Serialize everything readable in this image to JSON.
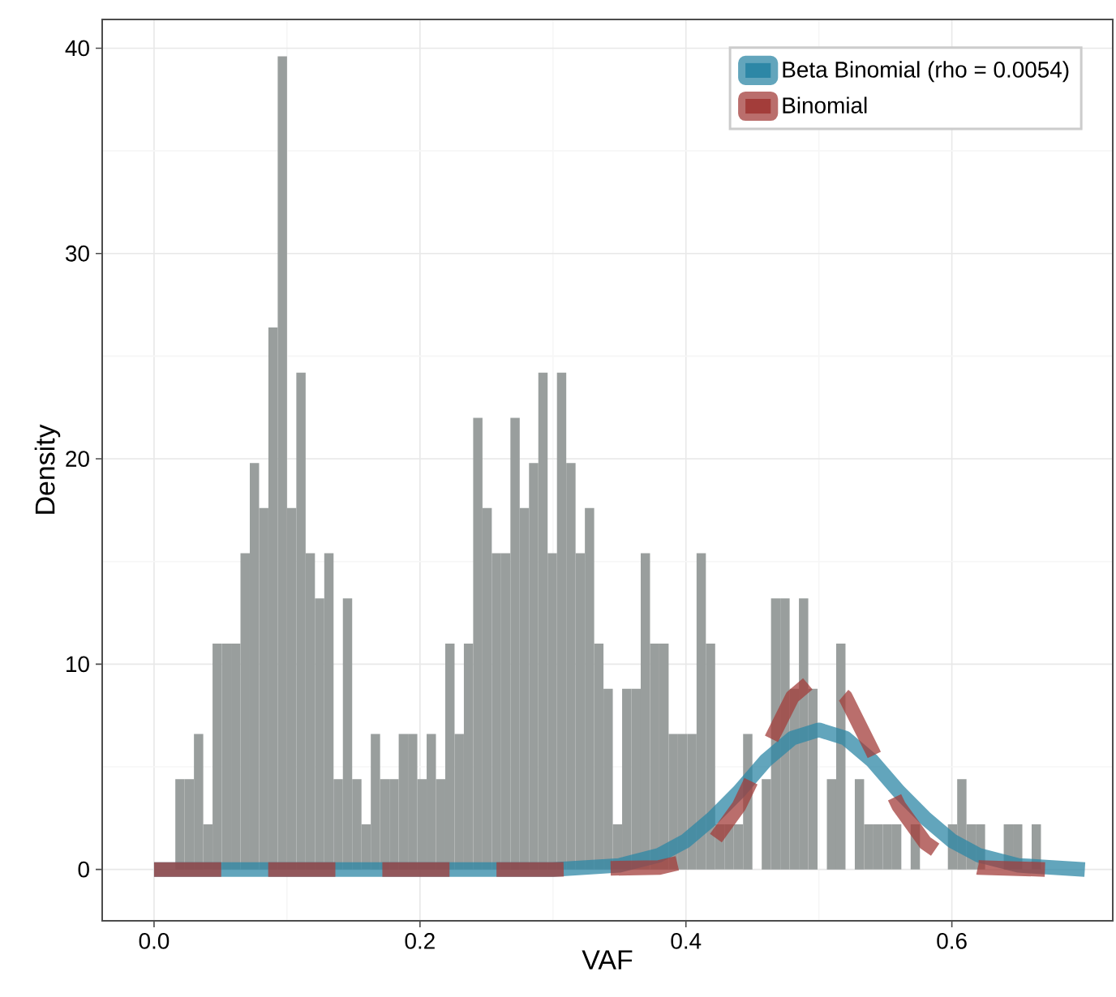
{
  "chart_data": {
    "type": "histogram",
    "xlabel": "VAF",
    "ylabel": "Density",
    "bins": [
      0.016,
      0.023,
      0.03,
      0.037,
      0.044,
      0.051,
      0.058,
      0.065,
      0.072,
      0.079,
      0.086,
      0.093,
      0.1,
      0.107,
      0.114,
      0.121,
      0.128,
      0.135,
      0.142,
      0.149,
      0.156,
      0.163,
      0.17,
      0.177,
      0.184,
      0.191,
      0.198,
      0.205,
      0.212,
      0.219,
      0.226,
      0.233,
      0.24,
      0.247,
      0.254,
      0.261,
      0.268,
      0.275,
      0.282,
      0.289,
      0.296,
      0.303,
      0.31,
      0.317,
      0.324,
      0.331,
      0.338,
      0.345,
      0.352,
      0.359,
      0.366,
      0.373,
      0.38,
      0.387,
      0.394,
      0.401,
      0.408,
      0.415,
      0.422,
      0.429,
      0.436,
      0.443,
      0.45,
      0.457,
      0.464,
      0.471,
      0.478,
      0.485,
      0.492,
      0.499,
      0.506,
      0.513,
      0.52,
      0.527,
      0.534,
      0.541,
      0.548,
      0.555,
      0.562,
      0.569,
      0.576,
      0.583,
      0.59,
      0.597,
      0.604,
      0.611,
      0.618,
      0.625,
      0.632,
      0.639,
      0.646,
      0.653,
      0.66,
      0.667
    ],
    "values": [
      4.4,
      4.4,
      6.6,
      2.2,
      11,
      11,
      11,
      15.4,
      19.8,
      17.6,
      26.4,
      39.6,
      17.6,
      24.2,
      15.4,
      13.2,
      15.4,
      4.4,
      13.2,
      4.4,
      2.2,
      6.6,
      4.4,
      4.4,
      6.6,
      6.6,
      4.4,
      6.6,
      4.4,
      11,
      6.6,
      11,
      22,
      17.6,
      15.4,
      15.4,
      22,
      17.6,
      19.8,
      24.2,
      15.4,
      24.2,
      19.8,
      15.4,
      17.6,
      11,
      8.8,
      2.2,
      8.8,
      8.8,
      15.4,
      11,
      11,
      6.6,
      6.6,
      6.6,
      15.4,
      11,
      2.2,
      2.2,
      2.2,
      6.6,
      0,
      4.4,
      13.2,
      13.2,
      8.8,
      13.2,
      8.8,
      0,
      4.4,
      11,
      0,
      4.4,
      2.2,
      2.2,
      2.2,
      2.2,
      0,
      2.2,
      0,
      0,
      0,
      2.2,
      4.4,
      2.2,
      2.2,
      0,
      0,
      2.2,
      2.2,
      0,
      2.2
    ],
    "color": "#999e9d",
    "series": [
      {
        "type": "line",
        "name": "Beta Binomial (rho = 0.0054)",
        "color": "#2e87a6",
        "line_style": "solid",
        "x": [
          0,
          0.3,
          0.35,
          0.38,
          0.4,
          0.42,
          0.44,
          0.46,
          0.48,
          0.5,
          0.52,
          0.54,
          0.56,
          0.58,
          0.6,
          0.62,
          0.65,
          0.7
        ],
        "values": [
          0,
          0,
          0.2,
          0.7,
          1.4,
          2.5,
          3.8,
          5.3,
          6.4,
          6.8,
          6.4,
          5.3,
          3.8,
          2.5,
          1.4,
          0.7,
          0.2,
          0
        ]
      },
      {
        "type": "line",
        "name": "Binomial",
        "color": "#a33e3b",
        "line_style": "dashed",
        "x": [
          0,
          0.3,
          0.38,
          0.4,
          0.42,
          0.44,
          0.46,
          0.48,
          0.5,
          0.52,
          0.54,
          0.56,
          0.58,
          0.6,
          0.62,
          0.67
        ],
        "values": [
          0,
          0,
          0.1,
          0.4,
          1.3,
          3.1,
          5.8,
          8.4,
          9.5,
          8.4,
          5.8,
          3.1,
          1.3,
          0.4,
          0.1,
          0
        ]
      }
    ],
    "xlim": [
      -0.039,
      0.721
    ],
    "ylim": [
      -2.5,
      41.4
    ],
    "xticks": [
      {
        "value": 0,
        "label": "0.0"
      },
      {
        "value": 0.2,
        "label": "0.2"
      },
      {
        "value": 0.4,
        "label": "0.4"
      },
      {
        "value": 0.6,
        "label": "0.6"
      }
    ],
    "yticks": [
      0,
      10,
      20,
      30,
      40
    ],
    "grid": true,
    "legend": "top right"
  }
}
